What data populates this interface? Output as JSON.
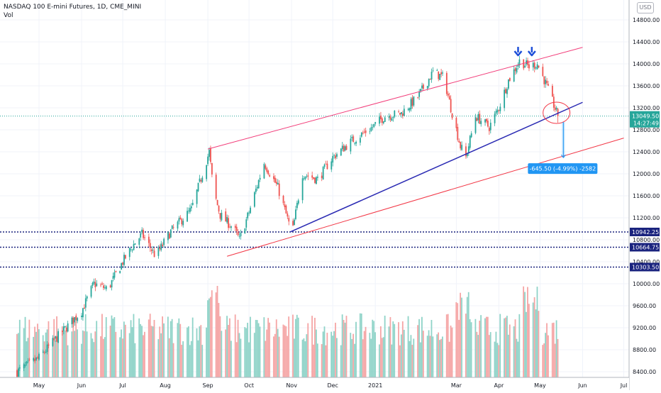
{
  "header": {
    "symbol_title": "NASDAQ 100 E-mini Futures, 1D, CME_MINI",
    "volume_label": "Vol",
    "currency_badge": "USD"
  },
  "chart_data": {
    "type": "candlestick",
    "title": "NASDAQ 100 E-mini Futures, 1D, CME_MINI",
    "price_axis": {
      "ticks": [
        "14800.00",
        "14400.00",
        "14000.00",
        "13600.00",
        "13200.00",
        "12800.00",
        "12400.00",
        "12000.00",
        "11600.00",
        "11200.00",
        "10800.00",
        "10400.00",
        "10000.00",
        "9600.00",
        "9200.00",
        "8800.00",
        "8400.00"
      ],
      "ylim": [
        8300,
        15100
      ],
      "scale": "linear"
    },
    "time_axis": {
      "labels": [
        "May",
        "Jun",
        "Jul",
        "Aug",
        "Sep",
        "Oct",
        "Nov",
        "Dec",
        "2021",
        "Mar",
        "Apr",
        "May",
        "Jun",
        "Jul"
      ]
    },
    "current_price": {
      "value": 13049.5,
      "label": "13049.50",
      "countdown": "14:27:49"
    },
    "horizontal_levels": [
      {
        "value": 10942.25,
        "label": "10942.25"
      },
      {
        "value": 10664.75,
        "label": "10664.75"
      },
      {
        "value": 10303.5,
        "label": "10303.50"
      }
    ],
    "measure": {
      "label": "-645.50 (-4.99%) -2582",
      "from": 12940,
      "to": 12295
    },
    "price_path": [
      [
        "2020-04-15",
        8400
      ],
      [
        "2020-05-01",
        8650
      ],
      [
        "2020-05-15",
        9050
      ],
      [
        "2020-06-01",
        9500
      ],
      [
        "2020-06-10",
        10000
      ],
      [
        "2020-06-20",
        9900
      ],
      [
        "2020-07-01",
        10400
      ],
      [
        "2020-07-10",
        10750
      ],
      [
        "2020-07-15",
        10900
      ],
      [
        "2020-07-25",
        10500
      ],
      [
        "2020-08-05",
        10950
      ],
      [
        "2020-08-20",
        11350
      ],
      [
        "2020-09-02",
        12400
      ],
      [
        "2020-09-05",
        11700
      ],
      [
        "2020-09-10",
        11250
      ],
      [
        "2020-09-20",
        11000
      ],
      [
        "2020-09-24",
        10800
      ],
      [
        "2020-10-01",
        11300
      ],
      [
        "2020-10-12",
        12200
      ],
      [
        "2020-10-22",
        11750
      ],
      [
        "2020-10-30",
        11100
      ],
      [
        "2020-11-02",
        11000
      ],
      [
        "2020-11-09",
        12000
      ],
      [
        "2020-11-20",
        11900
      ],
      [
        "2020-12-01",
        12300
      ],
      [
        "2020-12-15",
        12600
      ],
      [
        "2020-12-30",
        12850
      ],
      [
        "2021-01-08",
        13050
      ],
      [
        "2021-01-20",
        13100
      ],
      [
        "2021-02-01",
        13400
      ],
      [
        "2021-02-12",
        13850
      ],
      [
        "2021-02-20",
        13750
      ],
      [
        "2021-02-25",
        13200
      ],
      [
        "2021-03-04",
        12500
      ],
      [
        "2021-03-08",
        12300
      ],
      [
        "2021-03-15",
        13050
      ],
      [
        "2021-03-25",
        12850
      ],
      [
        "2021-04-01",
        13200
      ],
      [
        "2021-04-08",
        13700
      ],
      [
        "2021-04-16",
        14050
      ],
      [
        "2021-04-23",
        13950
      ],
      [
        "2021-04-29",
        14000
      ],
      [
        "2021-05-05",
        13650
      ],
      [
        "2021-05-11",
        13250
      ],
      [
        "2021-05-14",
        13050
      ]
    ],
    "volume_range": [
      0,
      1300000
    ],
    "trendlines": [
      {
        "name": "upper-channel",
        "color": "#f23d7a",
        "from": [
          "2020-09-01",
          12450
        ],
        "to": [
          "2021-06-01",
          14300
        ]
      },
      {
        "name": "lower-support",
        "color": "#f23645",
        "from": [
          "2020-09-15",
          10500
        ],
        "to": [
          "2021-07-01",
          12650
        ]
      },
      {
        "name": "rising-support",
        "color": "#2a2ab3",
        "from": [
          "2020-10-31",
          10942
        ],
        "to": [
          "2021-06-01",
          13300
        ]
      }
    ],
    "marks": [
      {
        "name": "arrow-down-1",
        "date": "2021-04-15",
        "price": 14180
      },
      {
        "name": "arrow-down-2",
        "date": "2021-04-25",
        "price": 14180
      }
    ],
    "colors": {
      "up": "#26a69a",
      "down": "#ef5350",
      "volume_up": "#8fd3c8",
      "volume_down": "#f5a5a5",
      "levels": "#1a237e",
      "measure": "#2196f3",
      "current_price": "#26a69a"
    }
  }
}
